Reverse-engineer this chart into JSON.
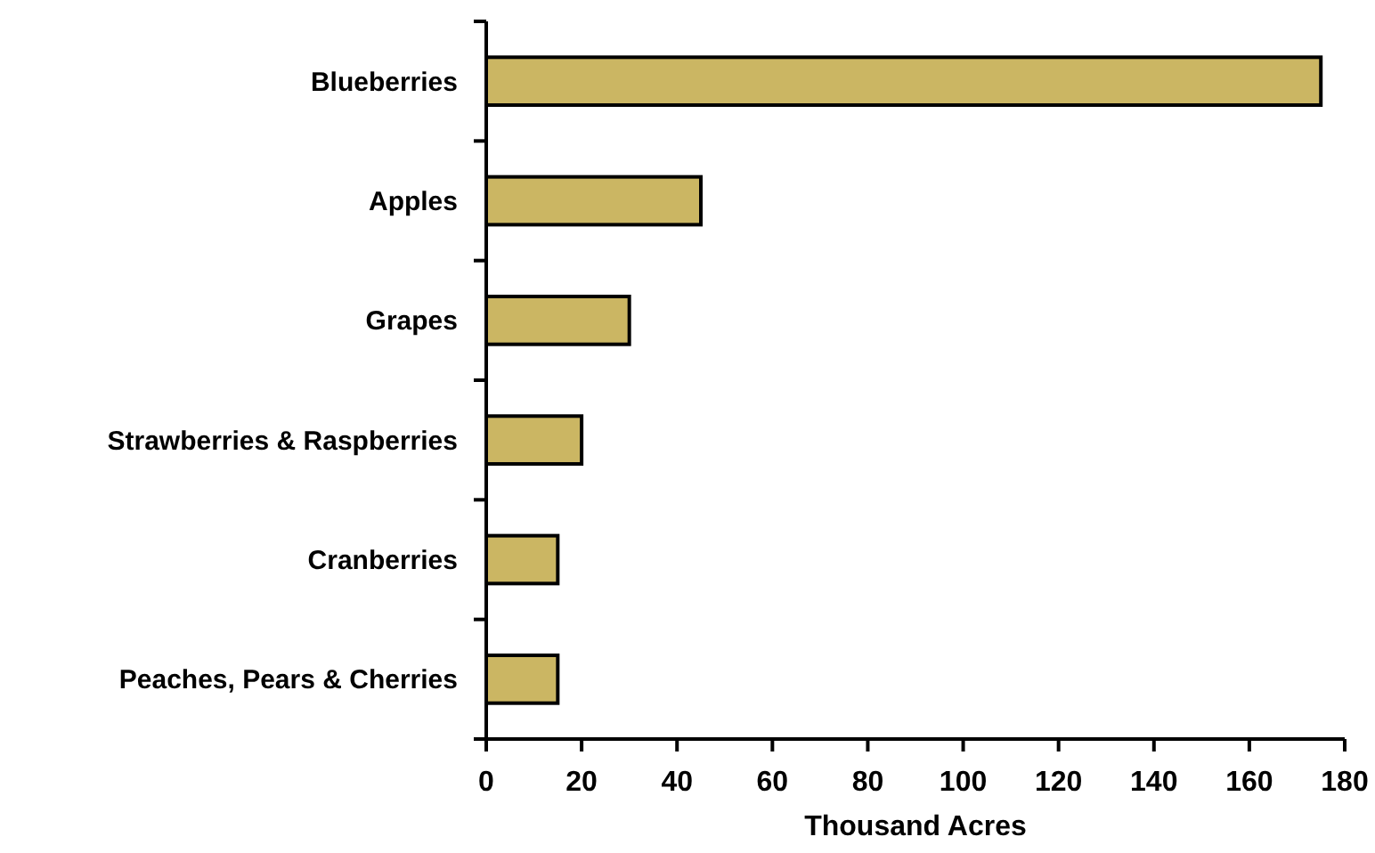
{
  "chart_data": {
    "type": "bar",
    "orientation": "horizontal",
    "xlabel": "Thousand Acres",
    "categories": [
      "Blueberries",
      "Apples",
      "Grapes",
      "Strawberries & Raspberries",
      "Cranberries",
      "Peaches, Pears & Cherries"
    ],
    "values": [
      175,
      45,
      30,
      20,
      15,
      15
    ],
    "color": "#cbb663",
    "xlim": [
      0,
      180
    ],
    "xticks": [
      0,
      20,
      40,
      60,
      80,
      100,
      120,
      140,
      160,
      180
    ]
  }
}
